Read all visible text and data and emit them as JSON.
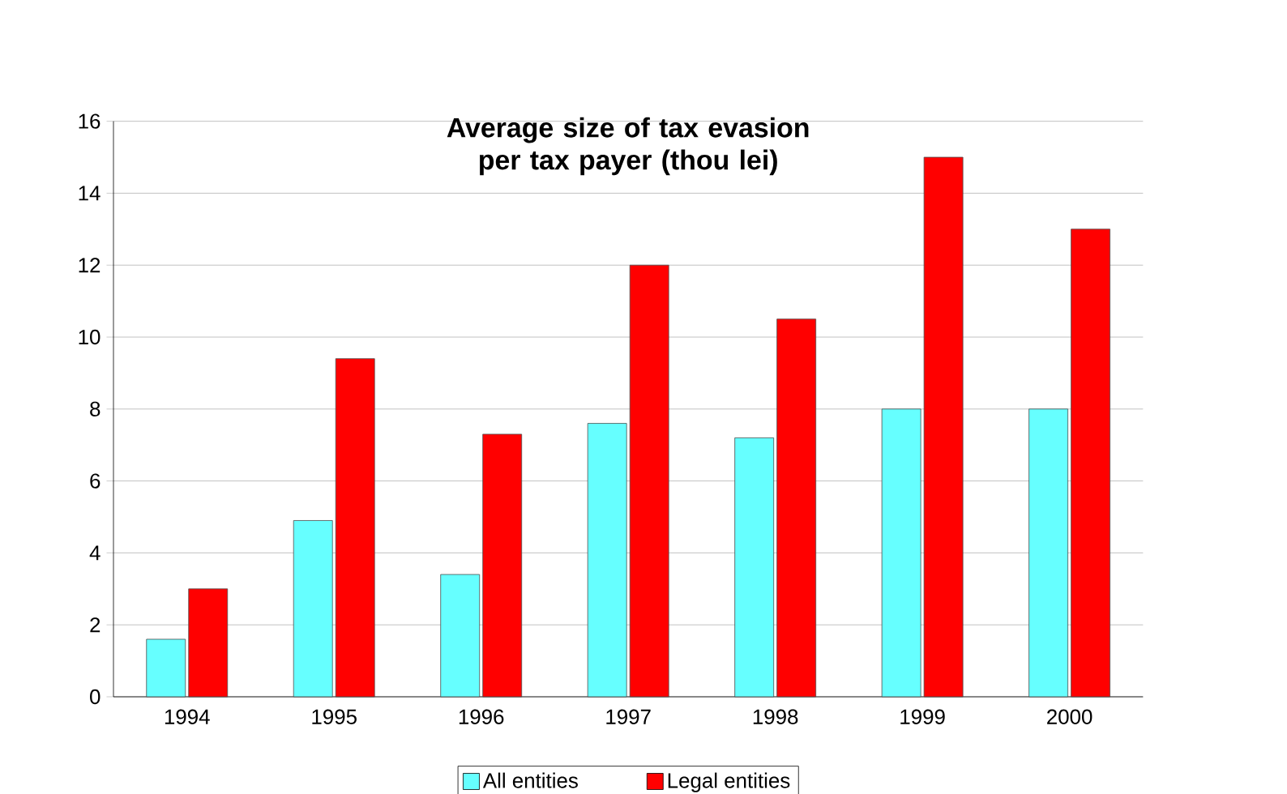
{
  "chart_data": {
    "type": "bar",
    "title": "Average size of  tax evasion per tax payer (thou lei)",
    "categories": [
      "1994",
      "1995",
      "1996",
      "1997",
      "1998",
      "1999",
      "2000"
    ],
    "series": [
      {
        "name": "All entities",
        "color": "#66ffff",
        "values": [
          1.6,
          4.9,
          3.4,
          7.6,
          7.2,
          8.0,
          8.0
        ]
      },
      {
        "name": "Legal entities",
        "color": "#ff0000",
        "values": [
          3.0,
          9.4,
          7.3,
          12.0,
          10.5,
          15.0,
          13.0
        ]
      }
    ],
    "ylim": [
      0,
      16
    ],
    "yticks": [
      0,
      2,
      4,
      6,
      8,
      10,
      12,
      14,
      16
    ],
    "grid": "y",
    "legend": "bottom"
  }
}
